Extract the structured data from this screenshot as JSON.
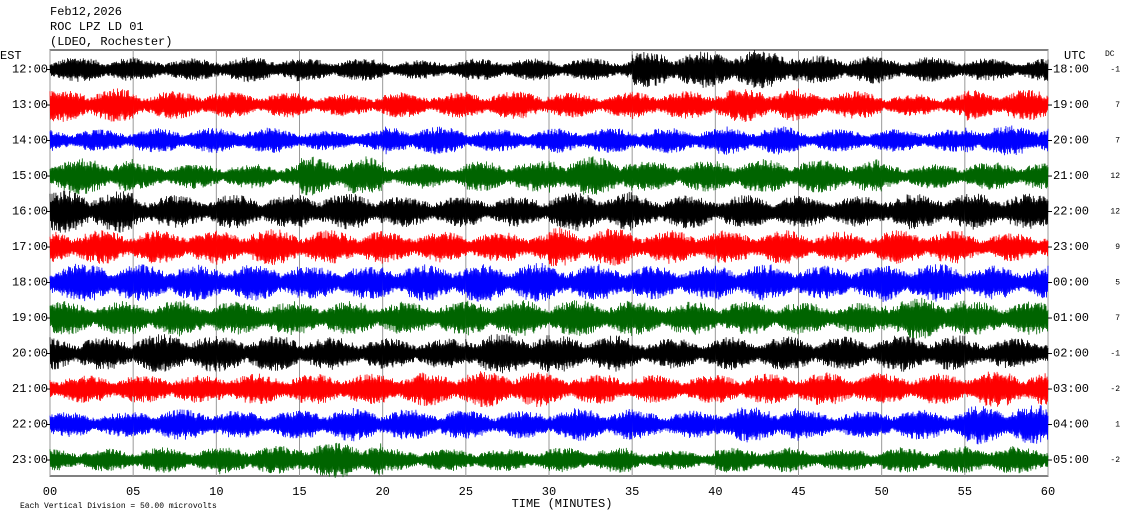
{
  "chart_data": {
    "type": "helicorder",
    "title_lines": [
      "Feb12,2026",
      "ROC LPZ LD 01",
      "(LDEO, Rochester)"
    ],
    "left_axis_label": "EST",
    "right_axis_label": "UTC",
    "dc_label": "DC",
    "x_label": "TIME (MINUTES)",
    "footer": "Each Vertical Division =   50.00 microvolts",
    "division": 50,
    "xlim": [
      0,
      60
    ],
    "xticks": [
      {
        "value": 0,
        "label": "00"
      },
      {
        "value": 5,
        "label": "05"
      },
      10,
      15,
      20,
      25,
      30,
      35,
      40,
      45,
      50,
      55,
      60
    ],
    "grid": true,
    "rows": [
      {
        "left_label": "12:00",
        "right_label": "18:00",
        "dc": -1,
        "color": "#000000",
        "amplitude": [
          18,
          16,
          18,
          16,
          14,
          16,
          16,
          26,
          28,
          20,
          18,
          16
        ]
      },
      {
        "left_label": "13:00",
        "right_label": "19:00",
        "dc": 7,
        "color": "#ff0000",
        "amplitude": [
          24,
          20,
          18,
          16,
          18,
          20,
          18,
          20,
          24,
          20,
          16,
          22
        ]
      },
      {
        "left_label": "14:00",
        "right_label": "20:00",
        "dc": 7,
        "color": "#0000ff",
        "amplitude": [
          16,
          18,
          18,
          14,
          20,
          16,
          18,
          18,
          20,
          16,
          16,
          22
        ]
      },
      {
        "left_label": "15:00",
        "right_label": "21:00",
        "dc": 12,
        "color": "#006400",
        "amplitude": [
          26,
          18,
          18,
          28,
          18,
          22,
          28,
          22,
          24,
          24,
          18,
          20
        ]
      },
      {
        "left_label": "16:00",
        "right_label": "22:00",
        "dc": 12,
        "color": "#000000",
        "amplitude": [
          30,
          24,
          24,
          26,
          22,
          22,
          28,
          24,
          24,
          22,
          26,
          26
        ]
      },
      {
        "left_label": "17:00",
        "right_label": "23:00",
        "dc": 9,
        "color": "#ff0000",
        "amplitude": [
          24,
          24,
          26,
          24,
          22,
          22,
          28,
          24,
          24,
          22,
          24,
          20
        ]
      },
      {
        "left_label": "18:00",
        "right_label": "00:00",
        "dc": 5,
        "color": "#0000ff",
        "amplitude": [
          28,
          26,
          26,
          24,
          26,
          28,
          26,
          24,
          26,
          24,
          28,
          24
        ]
      },
      {
        "left_label": "19:00",
        "right_label": "01:00",
        "dc": 7,
        "color": "#006400",
        "amplitude": [
          24,
          26,
          24,
          24,
          24,
          26,
          26,
          24,
          24,
          22,
          30,
          24
        ]
      },
      {
        "left_label": "20:00",
        "right_label": "02:00",
        "dc": -1,
        "color": "#000000",
        "amplitude": [
          24,
          28,
          26,
          24,
          22,
          30,
          26,
          22,
          24,
          24,
          26,
          22
        ]
      },
      {
        "left_label": "21:00",
        "right_label": "03:00",
        "dc": -2,
        "color": "#ff0000",
        "amplitude": [
          20,
          20,
          22,
          22,
          24,
          26,
          22,
          20,
          22,
          24,
          22,
          26
        ]
      },
      {
        "left_label": "22:00",
        "right_label": "04:00",
        "dc": 1,
        "color": "#0000ff",
        "amplitude": [
          18,
          22,
          20,
          24,
          22,
          20,
          24,
          20,
          26,
          20,
          22,
          28
        ]
      },
      {
        "left_label": "23:00",
        "right_label": "05:00",
        "dc": -2,
        "color": "#006400",
        "amplitude": [
          16,
          18,
          20,
          26,
          16,
          16,
          18,
          14,
          18,
          16,
          18,
          20
        ]
      }
    ]
  }
}
